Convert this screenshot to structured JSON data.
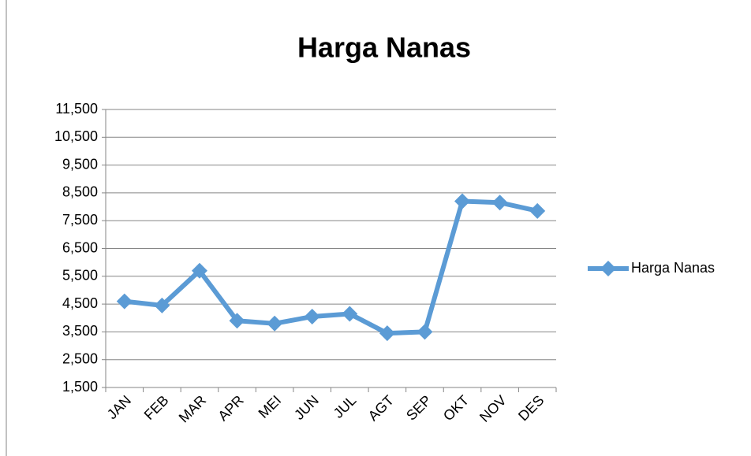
{
  "chart_data": {
    "type": "line",
    "title": "Harga Nanas",
    "categories": [
      "JAN",
      "FEB",
      "MAR",
      "APR",
      "MEI",
      "JUN",
      "JUL",
      "AGT",
      "SEP",
      "OKT",
      "NOV",
      "DES"
    ],
    "series": [
      {
        "name": "Harga Nanas",
        "color": "#5b9bd5",
        "values": [
          4600,
          4450,
          5700,
          3900,
          3800,
          4050,
          4150,
          3450,
          3500,
          8200,
          8150,
          7850
        ]
      }
    ],
    "ylim": [
      1500,
      11500
    ],
    "yticks": [
      {
        "value": 1500,
        "label": "1,500"
      },
      {
        "value": 2500,
        "label": "2,500"
      },
      {
        "value": 3500,
        "label": "3,500"
      },
      {
        "value": 4500,
        "label": "4,500"
      },
      {
        "value": 5500,
        "label": "5,500"
      },
      {
        "value": 6500,
        "label": "6,500"
      },
      {
        "value": 7500,
        "label": "7,500"
      },
      {
        "value": 8500,
        "label": "8,500"
      },
      {
        "value": 9500,
        "label": "9,500"
      },
      {
        "value": 10500,
        "label": "10,500"
      },
      {
        "value": 11500,
        "label": "11,500"
      }
    ],
    "grid": true,
    "legend": "right"
  }
}
